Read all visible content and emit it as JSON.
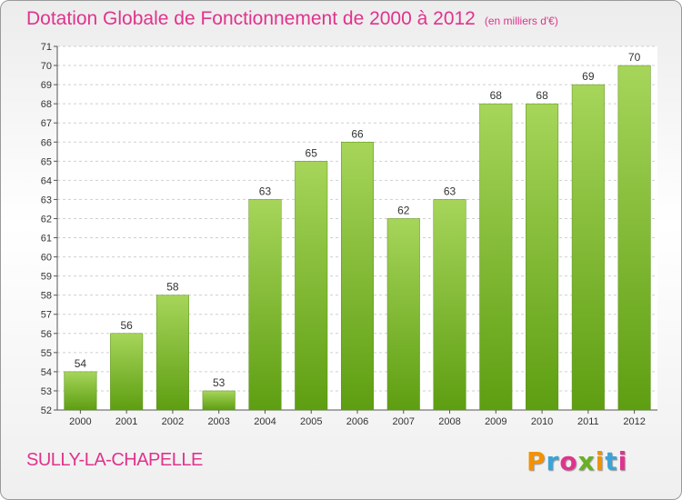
{
  "title": "Dotation Globale de Fonctionnement de 2000 à 2012",
  "subtitle": "(en milliers d'€)",
  "commune": "SULLY-LA-CHAPELLE",
  "logo": {
    "letters": [
      "P",
      "r",
      "o",
      "x",
      "i",
      "t",
      "i"
    ],
    "colors": [
      "#f39200",
      "#3aa3d8",
      "#e0338d",
      "#6ab023",
      "#f39200",
      "#3aa3d8",
      "#e0338d"
    ]
  },
  "colors": {
    "bar_light": "#a6d55a",
    "bar_dark": "#5e9e12",
    "title": "#e0338d"
  },
  "chart_data": {
    "type": "bar",
    "title": "Dotation Globale de Fonctionnement de 2000 à 2012",
    "subtitle": "(en milliers d'€)",
    "xlabel": "",
    "ylabel": "",
    "categories": [
      "2000",
      "2001",
      "2002",
      "2003",
      "2004",
      "2005",
      "2006",
      "2007",
      "2008",
      "2009",
      "2010",
      "2011",
      "2012"
    ],
    "values": [
      54,
      56,
      58,
      53,
      63,
      65,
      66,
      62,
      63,
      68,
      68,
      69,
      70
    ],
    "ylim": [
      52,
      71
    ],
    "yticks": [
      52,
      53,
      54,
      55,
      56,
      57,
      58,
      59,
      60,
      61,
      62,
      63,
      64,
      65,
      66,
      67,
      68,
      69,
      70,
      71
    ],
    "grid": true,
    "legend": "none"
  }
}
